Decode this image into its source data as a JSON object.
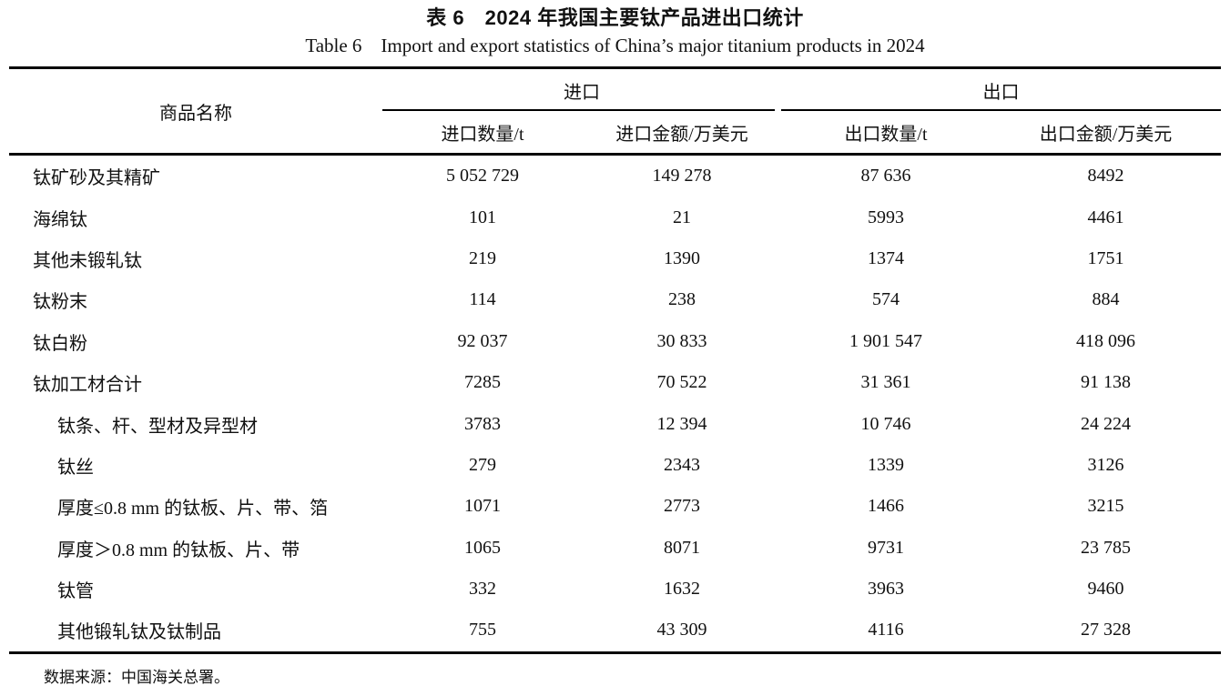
{
  "page": {
    "title_zh": "表 6　2024 年我国主要钛产品进出口统计",
    "title_en": "Table 6　Import and export statistics of China’s major titanium products in 2024",
    "footnote": "数据来源：中国海关总署。"
  },
  "table": {
    "product_header": "商品名称",
    "group_import": "进口",
    "group_export": "出口",
    "sub_headers": [
      "进口数量/t",
      "进口金额/万美元",
      "出口数量/t",
      "出口金额/万美元"
    ],
    "rows": [
      {
        "name": "钛矿砂及其精矿",
        "values": [
          "5 052 729",
          "149 278",
          "87 636",
          "8492"
        ]
      },
      {
        "name": "海绵钛",
        "values": [
          "101",
          "21",
          "5993",
          "4461"
        ]
      },
      {
        "name": "其他未锻轧钛",
        "values": [
          "219",
          "1390",
          "1374",
          "1751"
        ]
      },
      {
        "name": "钛粉末",
        "values": [
          "114",
          "238",
          "574",
          "884"
        ]
      },
      {
        "name": "钛白粉",
        "values": [
          "92 037",
          "30 833",
          "1 901 547",
          "418 096"
        ]
      },
      {
        "name": "钛加工材合计",
        "values": [
          "7285",
          "70 522",
          "31 361",
          "91 138"
        ]
      },
      {
        "name": "钛条、杆、型材及异型材",
        "values": [
          "3783",
          "12 394",
          "10 746",
          "24 224"
        ]
      },
      {
        "name": "钛丝",
        "values": [
          "279",
          "2343",
          "1339",
          "3126"
        ]
      },
      {
        "name": "厚度≤0.8 mm 的钛板、片、带、箔",
        "values": [
          "1071",
          "2773",
          "1466",
          "3215"
        ]
      },
      {
        "name": "厚度＞0.8 mm 的钛板、片、带",
        "values": [
          "1065",
          "8071",
          "9731",
          "23 785"
        ]
      },
      {
        "name": "钛管",
        "values": [
          "332",
          "1632",
          "3963",
          "9460"
        ]
      },
      {
        "name": "其他锻轧钛及钛制品",
        "values": [
          "755",
          "43 309",
          "4116",
          "27 328"
        ]
      }
    ]
  }
}
